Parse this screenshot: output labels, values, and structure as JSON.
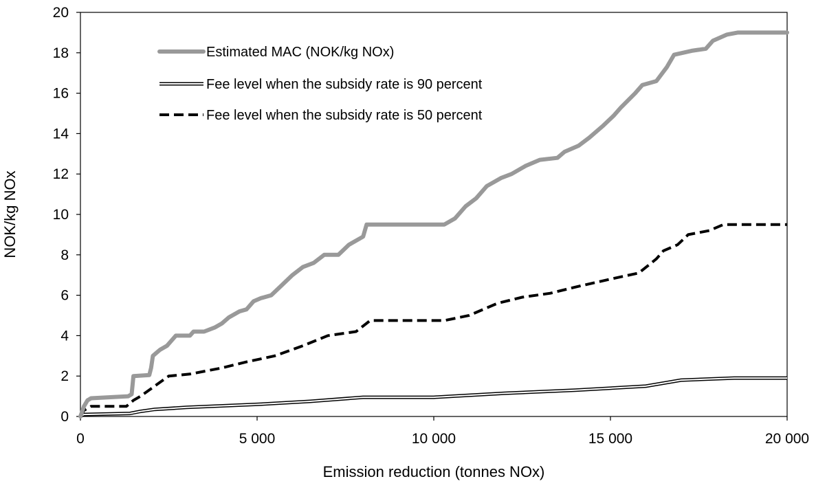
{
  "chart_data": {
    "type": "line",
    "title": "",
    "xlabel": "Emission reduction (tonnes NOx)",
    "ylabel": "NOK/kg NOx",
    "xlim": [
      0,
      20000
    ],
    "ylim": [
      0,
      20
    ],
    "x_ticks": [
      0,
      5000,
      10000,
      15000,
      20000
    ],
    "x_tick_labels": [
      "0",
      "5 000",
      "10 000",
      "15 000",
      "20 000"
    ],
    "y_ticks": [
      0,
      2,
      4,
      6,
      8,
      10,
      12,
      14,
      16,
      18,
      20
    ],
    "y_tick_labels": [
      "0",
      "2",
      "4",
      "6",
      "8",
      "10",
      "12",
      "14",
      "16",
      "18",
      "20"
    ],
    "grid": false,
    "legend_position": "top-left",
    "series": [
      {
        "name": "Estimated MAC (NOK/kg NOx)",
        "style": "thick-gray",
        "color": "#999999",
        "points": [
          [
            0,
            0
          ],
          [
            100,
            0.5
          ],
          [
            200,
            0.8
          ],
          [
            300,
            0.9
          ],
          [
            800,
            0.95
          ],
          [
            1350,
            1.0
          ],
          [
            1450,
            1.1
          ],
          [
            1500,
            2.0
          ],
          [
            1950,
            2.05
          ],
          [
            2000,
            2.4
          ],
          [
            2050,
            3.0
          ],
          [
            2250,
            3.3
          ],
          [
            2450,
            3.5
          ],
          [
            2600,
            3.8
          ],
          [
            2700,
            4.0
          ],
          [
            3100,
            4.0
          ],
          [
            3200,
            4.2
          ],
          [
            3500,
            4.2
          ],
          [
            3800,
            4.4
          ],
          [
            4000,
            4.6
          ],
          [
            4200,
            4.9
          ],
          [
            4500,
            5.2
          ],
          [
            4700,
            5.3
          ],
          [
            4900,
            5.7
          ],
          [
            5100,
            5.85
          ],
          [
            5400,
            6.0
          ],
          [
            5700,
            6.5
          ],
          [
            6000,
            7.0
          ],
          [
            6300,
            7.4
          ],
          [
            6600,
            7.6
          ],
          [
            6900,
            8.0
          ],
          [
            7300,
            8.0
          ],
          [
            7600,
            8.5
          ],
          [
            8000,
            8.9
          ],
          [
            8100,
            9.5
          ],
          [
            10300,
            9.5
          ],
          [
            10600,
            9.8
          ],
          [
            10900,
            10.4
          ],
          [
            11200,
            10.8
          ],
          [
            11500,
            11.4
          ],
          [
            11900,
            11.8
          ],
          [
            12200,
            12.0
          ],
          [
            12600,
            12.4
          ],
          [
            13000,
            12.7
          ],
          [
            13500,
            12.8
          ],
          [
            13700,
            13.1
          ],
          [
            14100,
            13.4
          ],
          [
            14400,
            13.8
          ],
          [
            14800,
            14.4
          ],
          [
            15100,
            14.9
          ],
          [
            15300,
            15.3
          ],
          [
            15700,
            16.0
          ],
          [
            15900,
            16.4
          ],
          [
            16300,
            16.6
          ],
          [
            16600,
            17.3
          ],
          [
            16800,
            17.9
          ],
          [
            17300,
            18.1
          ],
          [
            17700,
            18.2
          ],
          [
            17900,
            18.6
          ],
          [
            18300,
            18.9
          ],
          [
            18600,
            19.0
          ],
          [
            20000,
            19.0
          ]
        ]
      },
      {
        "name": "Fee level when the subsidy rate is 90 percent",
        "style": "double-line",
        "color": "#000000",
        "points": [
          [
            0,
            0
          ],
          [
            100,
            0.1
          ],
          [
            1400,
            0.15
          ],
          [
            1700,
            0.25
          ],
          [
            2100,
            0.35
          ],
          [
            3000,
            0.45
          ],
          [
            5000,
            0.6
          ],
          [
            6500,
            0.75
          ],
          [
            8000,
            0.95
          ],
          [
            10000,
            0.95
          ],
          [
            10500,
            1.0
          ],
          [
            12000,
            1.15
          ],
          [
            14000,
            1.3
          ],
          [
            16000,
            1.5
          ],
          [
            17000,
            1.8
          ],
          [
            18500,
            1.9
          ],
          [
            20000,
            1.9
          ]
        ]
      },
      {
        "name": "Fee level when the subsidy rate is 50 percent",
        "style": "dashed",
        "color": "#000000",
        "points": [
          [
            0,
            0
          ],
          [
            100,
            0.3
          ],
          [
            300,
            0.5
          ],
          [
            1300,
            0.5
          ],
          [
            1500,
            0.8
          ],
          [
            1700,
            1.0
          ],
          [
            2100,
            1.5
          ],
          [
            2500,
            2.0
          ],
          [
            3100,
            2.1
          ],
          [
            4000,
            2.4
          ],
          [
            4700,
            2.7
          ],
          [
            5500,
            3.0
          ],
          [
            6300,
            3.5
          ],
          [
            7000,
            4.0
          ],
          [
            7800,
            4.2
          ],
          [
            8200,
            4.75
          ],
          [
            10300,
            4.75
          ],
          [
            11000,
            5.0
          ],
          [
            11800,
            5.6
          ],
          [
            12500,
            5.9
          ],
          [
            13300,
            6.1
          ],
          [
            14000,
            6.4
          ],
          [
            15000,
            6.8
          ],
          [
            15800,
            7.1
          ],
          [
            16300,
            7.8
          ],
          [
            16500,
            8.2
          ],
          [
            16900,
            8.5
          ],
          [
            17200,
            9.0
          ],
          [
            17800,
            9.2
          ],
          [
            18200,
            9.5
          ],
          [
            20000,
            9.5
          ]
        ]
      }
    ]
  }
}
